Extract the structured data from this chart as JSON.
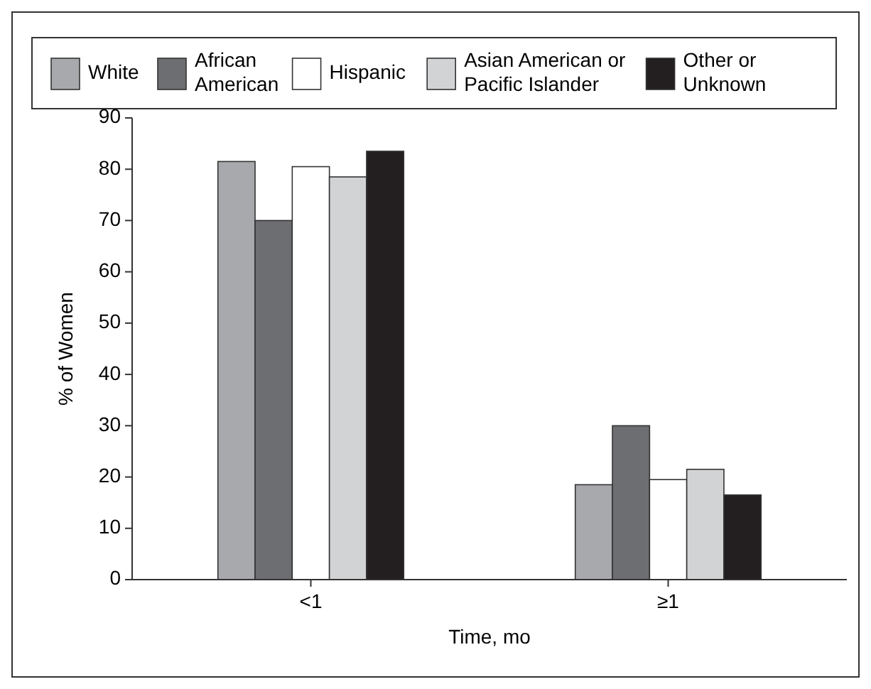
{
  "chart_data": {
    "type": "bar",
    "xlabel": "Time, mo",
    "ylabel": "% of Women",
    "categories": [
      "<1",
      "≥1"
    ],
    "series": [
      {
        "name": "White",
        "color": "#a7a9ac",
        "values": [
          81.5,
          18.5
        ]
      },
      {
        "name": "African American",
        "color": "#6d6e71",
        "values": [
          70,
          30
        ]
      },
      {
        "name": "Hispanic",
        "color": "#ffffff",
        "values": [
          80.5,
          19.5
        ]
      },
      {
        "name": "Asian American or Pacific Islander",
        "color": "#d1d3d4",
        "values": [
          78.5,
          21.5
        ]
      },
      {
        "name": "Other or Unknown",
        "color": "#231f20",
        "values": [
          83.5,
          16.5
        ]
      }
    ],
    "ylim": [
      0,
      90
    ],
    "yticks": [
      0,
      10,
      20,
      30,
      40,
      50,
      60,
      70,
      80,
      90
    ],
    "grid": false,
    "legend": "top"
  }
}
